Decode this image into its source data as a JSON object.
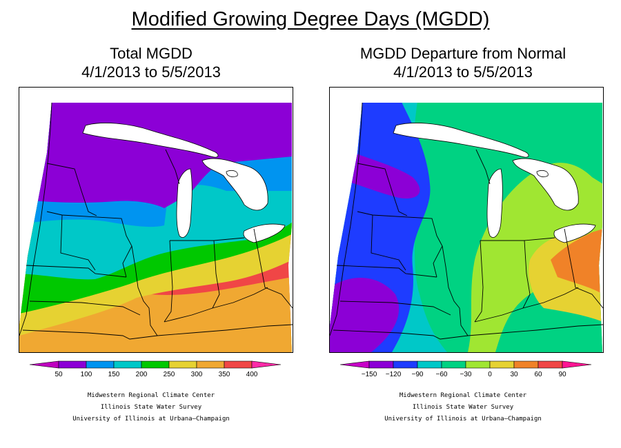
{
  "figure": {
    "title": "Modified Growing Degree Days (MGDD)"
  },
  "panels": [
    {
      "title_line1": "Total MGDD",
      "title_line2": "4/1/2013 to 5/5/2013",
      "legend": {
        "levels": [
          "50",
          "100",
          "150",
          "200",
          "250",
          "300",
          "350",
          "400"
        ],
        "colors": [
          "#bf00bf",
          "#8c00d6",
          "#0094f0",
          "#00c8c8",
          "#00c800",
          "#e6d232",
          "#f0a832",
          "#f04646",
          "#ff2aa8"
        ]
      }
    },
    {
      "title_line1": "MGDD Departure from Normal",
      "title_line2": "4/1/2013 to 5/5/2013",
      "legend": {
        "levels": [
          "−150",
          "−120",
          "−90",
          "−60",
          "−30",
          "0",
          "30",
          "60",
          "90"
        ],
        "colors": [
          "#c800c8",
          "#8c00d6",
          "#1e3cff",
          "#00c8c8",
          "#00d282",
          "#a0e632",
          "#e6d232",
          "#f08228",
          "#f04646",
          "#ff1493"
        ]
      }
    }
  ],
  "credits": {
    "line1": "Midwestern Regional Climate Center",
    "line2": "Illinois State Water Survey",
    "line3": "University of Illinois at Urbana–Champaign"
  }
}
